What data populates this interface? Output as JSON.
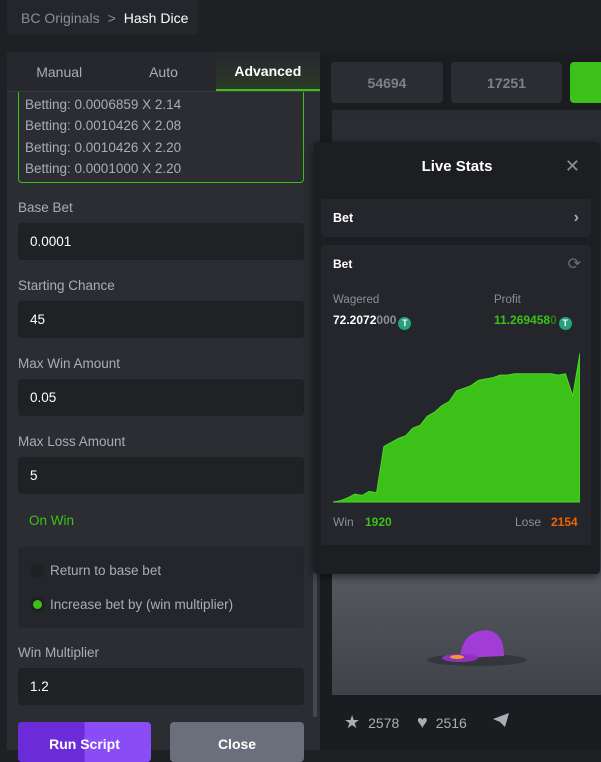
{
  "breadcrumb": {
    "parent": "BC Originals",
    "separator": ">",
    "current": "Hash Dice"
  },
  "tabs": [
    {
      "label": "Manual"
    },
    {
      "label": "Auto"
    },
    {
      "label": "Advanced",
      "active": true
    }
  ],
  "log": [
    "Betting: 0.0006859 X 2.14",
    "Betting: 0.0010426 X 2.08",
    "Betting: 0.0010426 X 2.20",
    "Betting: 0.0001000 X 2.20"
  ],
  "fields": {
    "base_bet": {
      "label": "Base Bet",
      "value": "0.0001"
    },
    "starting_chance": {
      "label": "Starting Chance",
      "value": "45"
    },
    "max_win": {
      "label": "Max Win Amount",
      "value": "0.05"
    },
    "max_loss": {
      "label": "Max Loss Amount",
      "value": "5"
    },
    "win_multiplier": {
      "label": "Win Multiplier",
      "value": "1.2"
    }
  },
  "on_win": {
    "title": "On Win",
    "options": [
      {
        "label": "Return to base bet",
        "selected": false
      },
      {
        "label": "Increase bet by (win multiplier)",
        "selected": true
      }
    ]
  },
  "buttons": {
    "run": "Run Script",
    "close": "Close"
  },
  "game": {
    "numbers": [
      "54694",
      "17251"
    ],
    "likes": "2578",
    "favorites": "2516"
  },
  "live_stats": {
    "title": "Live Stats",
    "bet_row": "Bet",
    "card_title": "Bet",
    "wagered_label": "Wagered",
    "wagered_main": "72.2072",
    "wagered_tail": "000",
    "profit_label": "Profit",
    "profit_main": "11.269458",
    "profit_tail": "0",
    "currency_icon": "T",
    "win_label": "Win",
    "win_count": "1920",
    "lose_label": "Lose",
    "lose_count": "2154"
  },
  "colors": {
    "accent": "#3bc117",
    "lose": "#ed6300",
    "purple": "#7b3cf0",
    "tether": "#26a17b"
  },
  "chart_data": {
    "type": "area",
    "series": [
      {
        "values": [
          0,
          0.1,
          0.3,
          0.6,
          0.5,
          0.8,
          0.7,
          4.2,
          4.5,
          4.8,
          5.0,
          5.6,
          5.8,
          6.5,
          6.8,
          7.3,
          7.6,
          8.4,
          8.6,
          8.8,
          9.2,
          9.3,
          9.4,
          9.6,
          9.6,
          9.7,
          9.7,
          9.7,
          9.7,
          9.7,
          9.7,
          9.6,
          9.7,
          8.0,
          11.27
        ]
      }
    ]
  }
}
